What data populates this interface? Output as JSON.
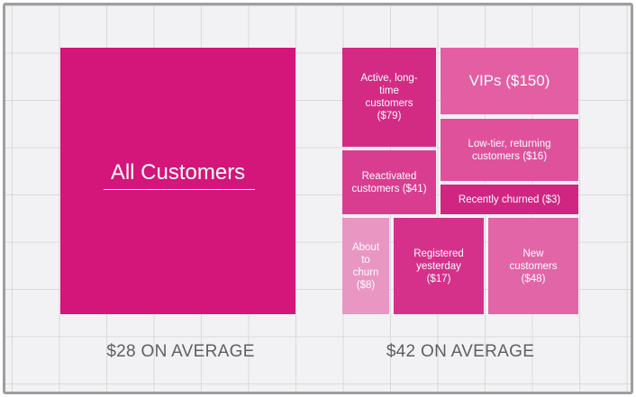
{
  "left_panel": {
    "title": "All Customers",
    "average": "$28 ON AVERAGE",
    "color": "#d4157a"
  },
  "right_panel": {
    "average": "$42 ON AVERAGE",
    "segments": [
      {
        "id": "active",
        "label": "Active, long-time customers ($79)",
        "color": "#d32a84"
      },
      {
        "id": "vips",
        "label": "VIPs ($150)",
        "color": "#e45ea3"
      },
      {
        "id": "low_tier",
        "label": "Low-tier, returning customers ($16)",
        "color": "#e0519c"
      },
      {
        "id": "reactivated",
        "label": "Reactivated customers ($41)",
        "color": "#d93d8f"
      },
      {
        "id": "recently_churned",
        "label": "Recently churned ($3)",
        "color": "#d02682"
      },
      {
        "id": "about_to_churn",
        "label": "About to churn ($8)",
        "color": "#e996c3"
      },
      {
        "id": "registered_yesterday",
        "label": "Registered yesterday ($17)",
        "color": "#d5318a"
      },
      {
        "id": "new_customers",
        "label": "New customers ($48)",
        "color": "#e265a7"
      }
    ]
  }
}
